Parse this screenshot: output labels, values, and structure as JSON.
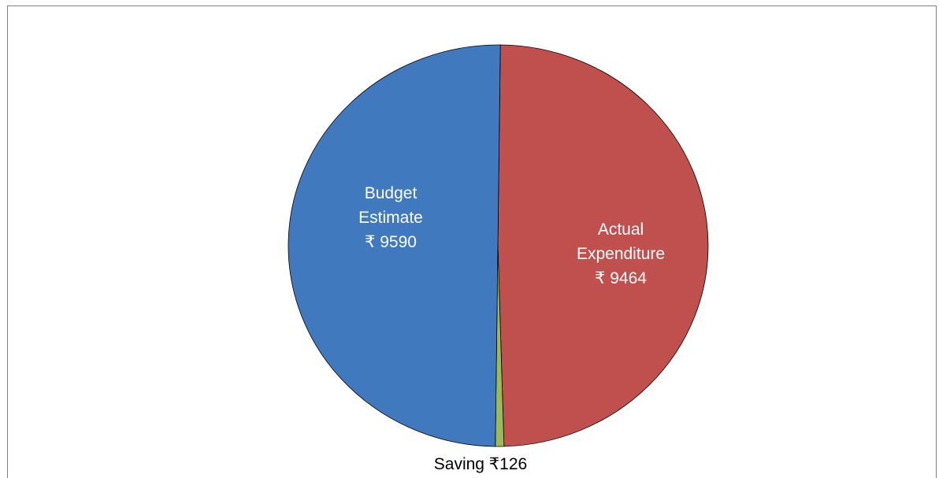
{
  "chart_data": {
    "type": "pie",
    "title": "",
    "slices": [
      {
        "key": "actual",
        "label_lines": [
          "Actual",
          "Expenditure",
          "₹ 9464"
        ],
        "value": 9464,
        "color": "#C0504D",
        "label_color": "#ffffff"
      },
      {
        "key": "saving",
        "label_lines": [
          "Saving ₹126"
        ],
        "value": 126,
        "color": "#9BBB59",
        "label_color": "#000000"
      },
      {
        "key": "budget",
        "label_lines": [
          "Budget",
          "Estimate",
          "₹ 9590"
        ],
        "value": 9590,
        "color": "#4179BE",
        "label_color": "#ffffff"
      }
    ],
    "legend": "none"
  }
}
